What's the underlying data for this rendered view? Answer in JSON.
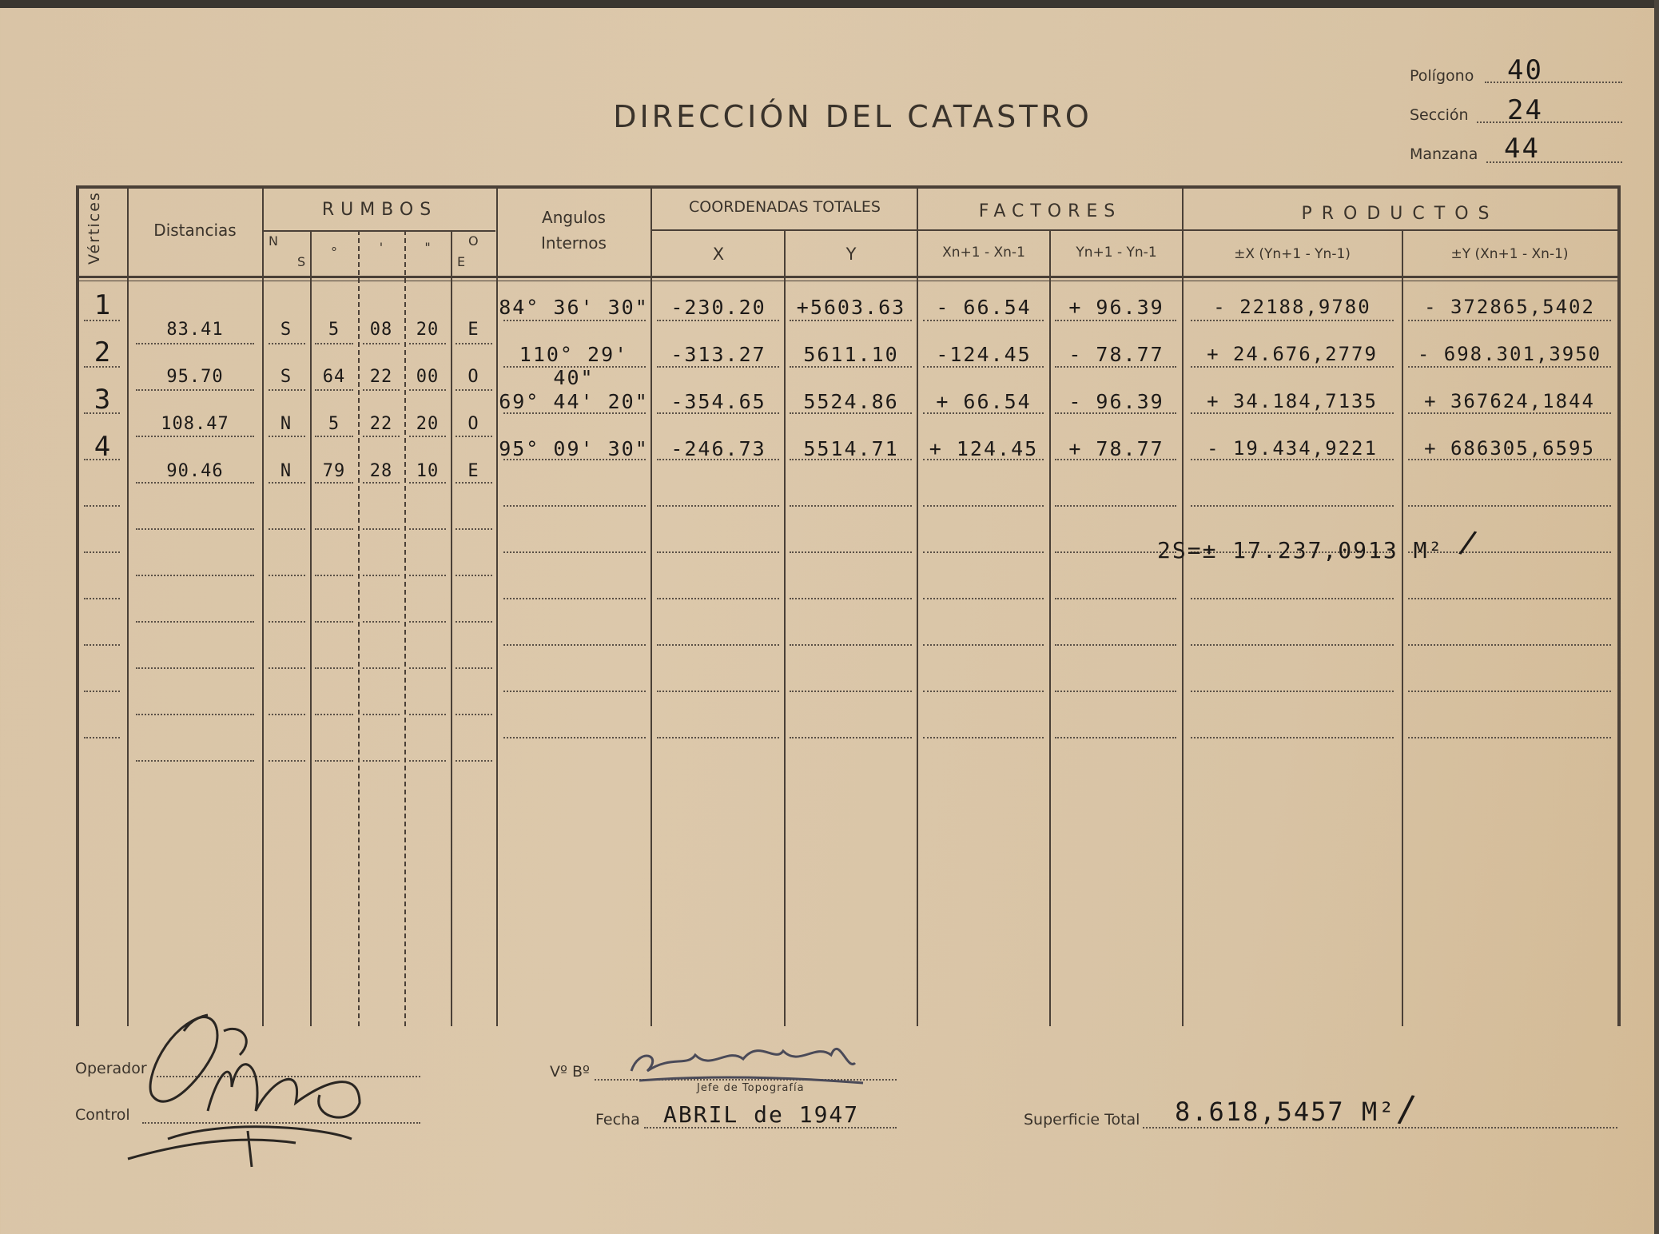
{
  "title": "DIRECCIÓN DEL CATASTRO",
  "meta": {
    "poligono_label": "Polígono",
    "poligono": "40",
    "seccion_label": "Sección",
    "seccion": "24",
    "manzana_label": "Manzana",
    "manzana": "44"
  },
  "headers": {
    "vertices": "Vértices",
    "distancias": "Distancias",
    "rumbos": "RUMBOS",
    "rumbos_ns": [
      "N",
      "S"
    ],
    "rumbos_deg": "°",
    "rumbos_min": "'",
    "rumbos_sec": "\"",
    "rumbos_oe": [
      "O",
      "E"
    ],
    "angulos": "Angulos",
    "internos": "Internos",
    "coordenadas": "COORDENADAS TOTALES",
    "x": "X",
    "y": "Y",
    "factores": "FACTORES",
    "factor_x": "Xn+1 - Xn-1",
    "factor_y": "Yn+1 - Yn-1",
    "productos": "PRODUCTOS",
    "producto_x": "±X (Yn+1 - Yn-1)",
    "producto_y": "±Y (Xn+1 - Xn-1)"
  },
  "vertices": [
    {
      "vertex": "1",
      "angle": "84° 36' 30\"",
      "x": "-230.20",
      "y": "+5603.63",
      "dx": "- 66.54",
      "dy": "+ 96.39",
      "px": "- 22188,9780",
      "py": "- 372865,5402"
    },
    {
      "vertex": "2",
      "angle": "110° 29' 40\"",
      "x": "-313.27",
      "y": "5611.10",
      "dx": "-124.45",
      "dy": "- 78.77",
      "px": "+ 24.676,2779",
      "py": "- 698.301,3950"
    },
    {
      "vertex": "3",
      "angle": "69° 44' 20\"",
      "x": "-354.65",
      "y": "5524.86",
      "dx": "+ 66.54",
      "dy": "- 96.39",
      "px": "+ 34.184,7135",
      "py": "+ 367624,1844"
    },
    {
      "vertex": "4",
      "angle": "95° 09' 30\"",
      "x": "-246.73",
      "y": "5514.71",
      "dx": "+ 124.45",
      "dy": "+ 78.77",
      "px": "- 19.434,9221",
      "py": "+ 686305,6595"
    }
  ],
  "sides": [
    {
      "distance": "83.41",
      "ns": "S",
      "deg": "5",
      "min": "08",
      "sec": "20",
      "eo": "E"
    },
    {
      "distance": "95.70",
      "ns": "S",
      "deg": "64",
      "min": "22",
      "sec": "00",
      "eo": "O"
    },
    {
      "distance": "108.47",
      "ns": "N",
      "deg": "5",
      "min": "22",
      "sec": "20",
      "eo": "O"
    },
    {
      "distance": "90.46",
      "ns": "N",
      "deg": "79",
      "min": "28",
      "sec": "10",
      "eo": "E"
    }
  ],
  "double_area": "2S=± 17.237,0913 M²",
  "footer": {
    "operador_label": "Operador",
    "control_label": "Control",
    "vobo_label": "Vº Bº",
    "jefe_label": "Jefe de Topografía",
    "fecha_label": "Fecha",
    "fecha": "ABRIL de 1947",
    "superficie_label": "Superficie Total",
    "superficie": "8.618,5457 M²"
  }
}
